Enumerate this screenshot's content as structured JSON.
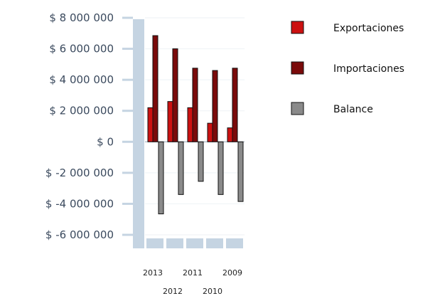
{
  "chart_data": {
    "type": "bar",
    "categories": [
      "2013",
      "2012",
      "2011",
      "2010",
      "2009"
    ],
    "series": [
      {
        "name": "Exportaciones",
        "color": "#cc1111",
        "values": [
          2200000,
          2600000,
          2200000,
          1200000,
          900000
        ]
      },
      {
        "name": "Importaciones",
        "color": "#7a0a0a",
        "values": [
          6850000,
          6000000,
          4750000,
          4600000,
          4750000
        ]
      },
      {
        "name": "Balance",
        "color": "#8a8a8a",
        "values": [
          -4650000,
          -3400000,
          -2550000,
          -3400000,
          -3850000
        ]
      }
    ],
    "y_ticks": [
      {
        "value": 8000000,
        "label": "$ 8 000 000"
      },
      {
        "value": 6000000,
        "label": "$ 6 000 000"
      },
      {
        "value": 4000000,
        "label": "$ 4 000 000"
      },
      {
        "value": 2000000,
        "label": "$ 2 000 000"
      },
      {
        "value": 0,
        "label": "$ 0"
      },
      {
        "value": -2000000,
        "label": "$ -2 000 000"
      },
      {
        "value": -4000000,
        "label": "$ -4 000 000"
      },
      {
        "value": -6000000,
        "label": "$ -6 000 000"
      }
    ],
    "ylim": [
      -6000000,
      8000000
    ],
    "title": "",
    "xlabel": "",
    "ylabel": "",
    "legend_position": "right",
    "grid": true,
    "axis_color": "#c5d4e2"
  }
}
